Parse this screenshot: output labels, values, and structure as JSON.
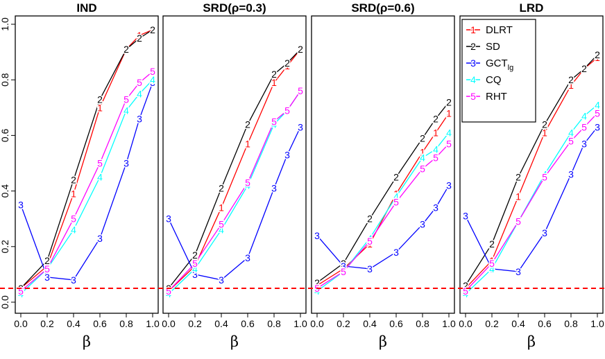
{
  "chart_data": {
    "type": "line",
    "layout": "1x4 panels",
    "x": [
      0.0,
      0.2,
      0.4,
      0.6,
      0.8,
      0.9,
      1.0
    ],
    "xlim": [
      0,
      1
    ],
    "ylim": [
      0,
      1
    ],
    "xticks": [
      "0.0",
      "0.2",
      "0.4",
      "0.6",
      "0.8",
      "1.0"
    ],
    "yticks": [
      "0.0",
      "0.2",
      "0.4",
      "0.6",
      "0.8",
      "1.0"
    ],
    "xlabel": "β",
    "reference_line": {
      "y": 0.05,
      "color": "#ff0000",
      "style": "dashed"
    },
    "legend": {
      "placement": "top-right of last panel",
      "entries": [
        {
          "symbol": "1",
          "label": "DLRT",
          "color": "#ff0000"
        },
        {
          "symbol": "2",
          "label": "SD",
          "color": "#000000"
        },
        {
          "symbol": "3",
          "label": "GCT",
          "sub": "lg",
          "color": "#0000ff"
        },
        {
          "symbol": "4",
          "label": "CQ",
          "color": "#00ffff"
        },
        {
          "symbol": "5",
          "label": "RHT",
          "color": "#ff00ff"
        }
      ]
    },
    "panels": [
      {
        "title": "IND",
        "series": [
          {
            "symbol": "1",
            "color": "#ff0000",
            "values": [
              0.05,
              0.13,
              0.39,
              0.7,
              0.91,
              0.96,
              0.98
            ]
          },
          {
            "symbol": "2",
            "color": "#000000",
            "values": [
              0.05,
              0.15,
              0.44,
              0.73,
              0.91,
              0.95,
              0.98
            ]
          },
          {
            "symbol": "3",
            "color": "#0000ff",
            "values": [
              0.35,
              0.09,
              0.08,
              0.23,
              0.5,
              0.66,
              0.79
            ]
          },
          {
            "symbol": "4",
            "color": "#00ffff",
            "values": [
              0.03,
              0.12,
              0.26,
              0.45,
              0.69,
              0.75,
              0.8
            ]
          },
          {
            "symbol": "5",
            "color": "#ff00ff",
            "values": [
              0.04,
              0.12,
              0.3,
              0.5,
              0.73,
              0.79,
              0.83
            ]
          }
        ]
      },
      {
        "title": "SRD(ρ=0.3)",
        "series": [
          {
            "symbol": "1",
            "color": "#ff0000",
            "values": [
              0.04,
              0.13,
              0.34,
              0.57,
              0.79,
              0.85,
              0.91
            ]
          },
          {
            "symbol": "2",
            "color": "#000000",
            "values": [
              0.05,
              0.17,
              0.41,
              0.64,
              0.82,
              0.86,
              0.91
            ]
          },
          {
            "symbol": "3",
            "color": "#0000ff",
            "values": [
              0.3,
              0.1,
              0.08,
              0.16,
              0.41,
              0.53,
              0.63
            ]
          },
          {
            "symbol": "4",
            "color": "#00ffff",
            "values": [
              0.03,
              0.12,
              0.26,
              0.42,
              0.64,
              0.69,
              0.76
            ]
          },
          {
            "symbol": "5",
            "color": "#ff00ff",
            "values": [
              0.04,
              0.14,
              0.28,
              0.43,
              0.65,
              0.69,
              0.76
            ]
          }
        ]
      },
      {
        "title": "SRD(ρ=0.6)",
        "series": [
          {
            "symbol": "1",
            "color": "#ff0000",
            "values": [
              0.06,
              0.12,
              0.21,
              0.39,
              0.54,
              0.61,
              0.68
            ]
          },
          {
            "symbol": "2",
            "color": "#000000",
            "values": [
              0.07,
              0.14,
              0.3,
              0.45,
              0.59,
              0.66,
              0.72
            ]
          },
          {
            "symbol": "3",
            "color": "#0000ff",
            "values": [
              0.24,
              0.13,
              0.12,
              0.18,
              0.28,
              0.34,
              0.42
            ]
          },
          {
            "symbol": "4",
            "color": "#00ffff",
            "values": [
              0.04,
              0.11,
              0.23,
              0.38,
              0.52,
              0.55,
              0.61
            ]
          },
          {
            "symbol": "5",
            "color": "#ff00ff",
            "values": [
              0.05,
              0.11,
              0.22,
              0.36,
              0.48,
              0.52,
              0.57
            ]
          }
        ]
      },
      {
        "title": "LRD",
        "series": [
          {
            "symbol": "1",
            "color": "#ff0000",
            "values": [
              0.05,
              0.15,
              0.38,
              0.61,
              0.78,
              0.84,
              0.88
            ]
          },
          {
            "symbol": "2",
            "color": "#000000",
            "values": [
              0.06,
              0.21,
              0.45,
              0.64,
              0.8,
              0.84,
              0.89
            ]
          },
          {
            "symbol": "3",
            "color": "#0000ff",
            "values": [
              0.31,
              0.12,
              0.11,
              0.25,
              0.46,
              0.57,
              0.63
            ]
          },
          {
            "symbol": "4",
            "color": "#00ffff",
            "values": [
              0.03,
              0.12,
              0.29,
              0.46,
              0.61,
              0.67,
              0.71
            ]
          },
          {
            "symbol": "5",
            "color": "#ff00ff",
            "values": [
              0.04,
              0.14,
              0.29,
              0.45,
              0.58,
              0.63,
              0.68
            ]
          }
        ]
      }
    ]
  }
}
